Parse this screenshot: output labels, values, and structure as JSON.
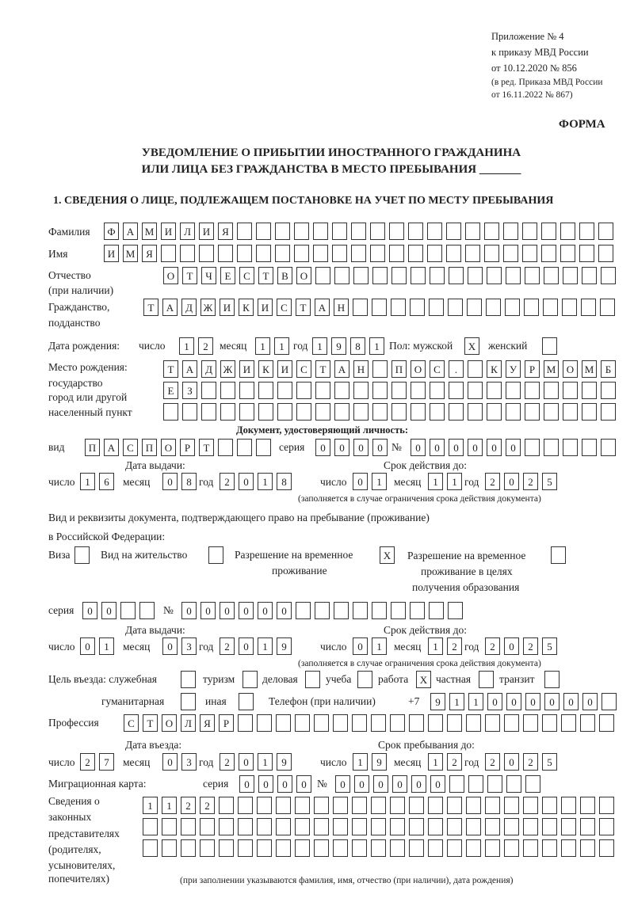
{
  "header": {
    "appendix": [
      "Приложение № 4",
      "к приказу МВД России",
      "от 10.12.2020 № 856"
    ],
    "revision": [
      "(в ред. Приказа МВД России",
      "от 16.11.2022 № 867)"
    ],
    "form_label": "ФОРМА",
    "title_line1": "УВЕДОМЛЕНИЕ О ПРИБЫТИИ ИНОСТРАННОГО ГРАЖДАНИНА",
    "title_line2": "ИЛИ ЛИЦА БЕЗ ГРАЖДАНСТВА В МЕСТО ПРЕБЫВАНИЯ _______",
    "section1": "1. СВЕДЕНИЯ О ЛИЦЕ, ПОДЛЕЖАЩЕМ ПОСТАНОВКЕ НА УЧЕТ ПО МЕСТУ ПРЕБЫВАНИЯ"
  },
  "person": {
    "surname_label": "Фамилия",
    "surname": [
      "Ф",
      "А",
      "М",
      "И",
      "Л",
      "И",
      "Я",
      "",
      "",
      "",
      "",
      "",
      "",
      "",
      "",
      "",
      "",
      "",
      "",
      "",
      "",
      "",
      "",
      "",
      "",
      "",
      ""
    ],
    "name_label": "Имя",
    "name": [
      "И",
      "М",
      "Я",
      "",
      "",
      "",
      "",
      "",
      "",
      "",
      "",
      "",
      "",
      "",
      "",
      "",
      "",
      "",
      "",
      "",
      "",
      "",
      "",
      "",
      "",
      "",
      ""
    ],
    "patronymic_label": [
      "Отчество",
      "(при наличии)"
    ],
    "patronymic": [
      "О",
      "Т",
      "Ч",
      "Е",
      "С",
      "Т",
      "В",
      "О",
      "",
      "",
      "",
      "",
      "",
      "",
      "",
      "",
      "",
      "",
      "",
      "",
      "",
      "",
      "",
      ""
    ],
    "citizenship_label": [
      "Гражданство,",
      "подданство"
    ],
    "citizenship": [
      "Т",
      "А",
      "Д",
      "Ж",
      "И",
      "К",
      "И",
      "С",
      "Т",
      "А",
      "Н",
      "",
      "",
      "",
      "",
      "",
      "",
      "",
      "",
      "",
      "",
      "",
      "",
      "",
      ""
    ],
    "birth": {
      "label": "Дата рождения:",
      "day_label": "число",
      "day": [
        "1",
        "2"
      ],
      "month_label": "месяц",
      "month": [
        "1",
        "1"
      ],
      "year_label": "год",
      "year": [
        "1",
        "9",
        "8",
        "1"
      ],
      "sex_label": "Пол: мужской",
      "male": [
        "X"
      ],
      "female_label": "женский",
      "female": [
        ""
      ]
    },
    "birthplace_label": [
      "Место рождения:",
      "государство",
      "город или другой",
      "населенный пункт"
    ],
    "birthplace": [
      [
        "Т",
        "А",
        "Д",
        "Ж",
        "И",
        "К",
        "И",
        "С",
        "Т",
        "А",
        "Н",
        "",
        "П",
        "О",
        "С",
        ".",
        "",
        "К",
        "У",
        "Р",
        "М",
        "О",
        "М",
        "Б"
      ],
      [
        "Е",
        "З",
        "",
        "",
        "",
        "",
        "",
        "",
        "",
        "",
        "",
        "",
        "",
        "",
        "",
        "",
        "",
        "",
        "",
        "",
        "",
        "",
        "",
        ""
      ],
      [
        "",
        "",
        "",
        "",
        "",
        "",
        "",
        "",
        "",
        "",
        "",
        "",
        "",
        "",
        "",
        "",
        "",
        "",
        "",
        "",
        "",
        "",
        "",
        ""
      ]
    ]
  },
  "id_doc": {
    "heading": "Документ, удостоверяющий личность:",
    "kind_label": "вид",
    "kind": [
      "П",
      "А",
      "С",
      "П",
      "О",
      "Р",
      "Т",
      "",
      "",
      ""
    ],
    "series_label": "серия",
    "series": [
      "0",
      "0",
      "0",
      "0"
    ],
    "number_label": "№",
    "number": [
      "0",
      "0",
      "0",
      "0",
      "0",
      "0",
      "",
      "",
      "",
      "",
      ""
    ],
    "issued_label": "Дата выдачи:",
    "valid_label": "Срок действия до:",
    "day_label": "число",
    "month_label": "месяц",
    "year_label": "год",
    "issued": {
      "day": [
        "1",
        "6"
      ],
      "month": [
        "0",
        "8"
      ],
      "year": [
        "2",
        "0",
        "1",
        "8"
      ]
    },
    "valid": {
      "day": [
        "0",
        "1"
      ],
      "month": [
        "1",
        "1"
      ],
      "year": [
        "2",
        "0",
        "2",
        "5"
      ]
    },
    "note": "(заполняется в случае ограничения срока действия документа)"
  },
  "stay_doc": {
    "heading1": "Вид и реквизиты документа, подтверждающего право на пребывание (проживание)",
    "heading2": "в Российской Федерации:",
    "visa_label": "Виза",
    "visa": [
      ""
    ],
    "residence_label": "Вид на жительство",
    "residence": [
      ""
    ],
    "trp_label": [
      "Разрешение на временное",
      "проживание"
    ],
    "trp": [
      "X"
    ],
    "trp_edu_label": [
      "Разрешение на временное",
      "проживание в целях",
      "получения образования"
    ],
    "trp_edu": [
      ""
    ],
    "series_label": "серия",
    "series": [
      "0",
      "0",
      "",
      ""
    ],
    "number_label": "№",
    "number": [
      "0",
      "0",
      "0",
      "0",
      "0",
      "0",
      "",
      "",
      "",
      "",
      "",
      "",
      "",
      "",
      ""
    ],
    "issued_label": "Дата выдачи:",
    "valid_label": "Срок действия до:",
    "day_label": "число",
    "month_label": "месяц",
    "year_label": "год",
    "issued": {
      "day": [
        "0",
        "1"
      ],
      "month": [
        "0",
        "3"
      ],
      "year": [
        "2",
        "0",
        "1",
        "9"
      ]
    },
    "valid": {
      "day": [
        "0",
        "1"
      ],
      "month": [
        "1",
        "2"
      ],
      "year": [
        "2",
        "0",
        "2",
        "5"
      ]
    },
    "note": "(заполняется в случае ограничения срока действия документа)"
  },
  "purpose": {
    "label": "Цель въезда: служебная",
    "official": [
      ""
    ],
    "tourism_label": "туризм",
    "tourism": [
      ""
    ],
    "business_label": "деловая",
    "business": [
      ""
    ],
    "study_label": "учеба",
    "study": [
      ""
    ],
    "work_label": "работа",
    "work": [
      "X"
    ],
    "private_label": "частная",
    "private": [
      ""
    ],
    "transit_label": "транзит",
    "transit": [
      ""
    ],
    "humanitarian_label": "гуманитарная",
    "humanitarian": [
      ""
    ],
    "other_label": "иная",
    "other": [
      ""
    ],
    "phone_label": "Телефон (при наличии)",
    "phone_prefix": "+7",
    "phone": [
      "9",
      "1",
      "1",
      "0",
      "0",
      "0",
      "0",
      "0",
      "0",
      ""
    ]
  },
  "profession": {
    "label": "Профессия",
    "value": [
      "С",
      "Т",
      "О",
      "Л",
      "Я",
      "Р",
      "",
      "",
      "",
      "",
      "",
      "",
      "",
      "",
      "",
      "",
      "",
      "",
      "",
      "",
      "",
      "",
      "",
      "",
      "",
      ""
    ]
  },
  "entry": {
    "entry_label": "Дата въезда:",
    "stay_label": "Срок пребывания до:",
    "day_label": "число",
    "month_label": "месяц",
    "year_label": "год",
    "entry": {
      "day": [
        "2",
        "7"
      ],
      "month": [
        "0",
        "3"
      ],
      "year": [
        "2",
        "0",
        "1",
        "9"
      ]
    },
    "stay_until": {
      "day": [
        "1",
        "9"
      ],
      "month": [
        "1",
        "2"
      ],
      "year": [
        "2",
        "0",
        "2",
        "5"
      ]
    }
  },
  "migration_card": {
    "label": "Миграционная карта:",
    "series_label": "серия",
    "series": [
      "0",
      "0",
      "0",
      "0"
    ],
    "number_label": "№",
    "number": [
      "0",
      "0",
      "0",
      "0",
      "0",
      "0",
      "",
      "",
      "",
      "",
      ""
    ]
  },
  "representatives": {
    "label": [
      "Сведения о",
      "законных",
      "представителях",
      "(родителях,",
      "усыновителях,",
      "попечителях)"
    ],
    "rows": [
      [
        "1",
        "1",
        "2",
        "2",
        "",
        "",
        "",
        "",
        "",
        "",
        "",
        "",
        "",
        "",
        "",
        "",
        "",
        "",
        "",
        "",
        "",
        "",
        "",
        "",
        ""
      ],
      [
        "",
        "",
        "",
        "",
        "",
        "",
        "",
        "",
        "",
        "",
        "",
        "",
        "",
        "",
        "",
        "",
        "",
        "",
        "",
        "",
        "",
        "",
        "",
        "",
        ""
      ],
      [
        "",
        "",
        "",
        "",
        "",
        "",
        "",
        "",
        "",
        "",
        "",
        "",
        "",
        "",
        "",
        "",
        "",
        "",
        "",
        "",
        "",
        "",
        "",
        "",
        ""
      ]
    ],
    "note": "(при заполнении указываются фамилия, имя, отчество (при наличии), дата рождения)"
  }
}
